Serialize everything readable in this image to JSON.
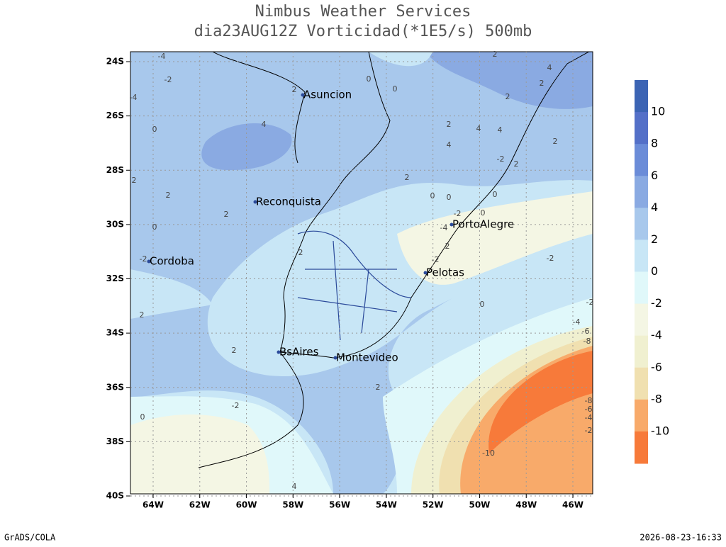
{
  "header": {
    "title": "Nimbus Weather Services",
    "subtitle": "dia23AUG12Z Vorticidad(*1E5/s) 500mb"
  },
  "map": {
    "lat_labels": [
      "24S",
      "26S",
      "28S",
      "30S",
      "32S",
      "34S",
      "36S",
      "38S",
      "40S"
    ],
    "lon_labels": [
      "64W",
      "62W",
      "60W",
      "58W",
      "56W",
      "54W",
      "52W",
      "50W",
      "48W",
      "46W"
    ],
    "cities": [
      "Asuncion",
      "Reconquista",
      "Cordoba",
      "PortoAlegre",
      "Pelotas",
      "BsAires",
      "Montevideo"
    ],
    "contour_labels": [
      -2,
      -4,
      -4,
      0,
      2,
      4,
      0,
      0,
      2,
      4,
      2,
      2,
      2,
      4,
      4,
      4,
      2,
      -2,
      2,
      2,
      0,
      0,
      0,
      0,
      -2,
      2,
      2,
      2,
      0,
      -4,
      2,
      2,
      -2,
      -2,
      -2,
      0,
      2,
      2,
      2,
      -2,
      0,
      4,
      -10,
      -2,
      -4,
      -6,
      -8,
      -8,
      -6,
      -4,
      -2
    ]
  },
  "colorbar": {
    "colors": [
      "#3c64b4",
      "#5470c8",
      "#6b8cd8",
      "#8aaae2",
      "#a8c8ec",
      "#c8e6f6",
      "#e0f8fa",
      "#f4f6e4",
      "#f0f0d0",
      "#f0e0b0",
      "#f8aa6a",
      "#f77a3a"
    ],
    "labels": [
      10,
      8,
      6,
      4,
      2,
      0,
      -2,
      -4,
      -6,
      -8,
      -10
    ]
  },
  "footer": {
    "left": "GrADS/COLA",
    "right": "2026-08-23-16:33"
  }
}
